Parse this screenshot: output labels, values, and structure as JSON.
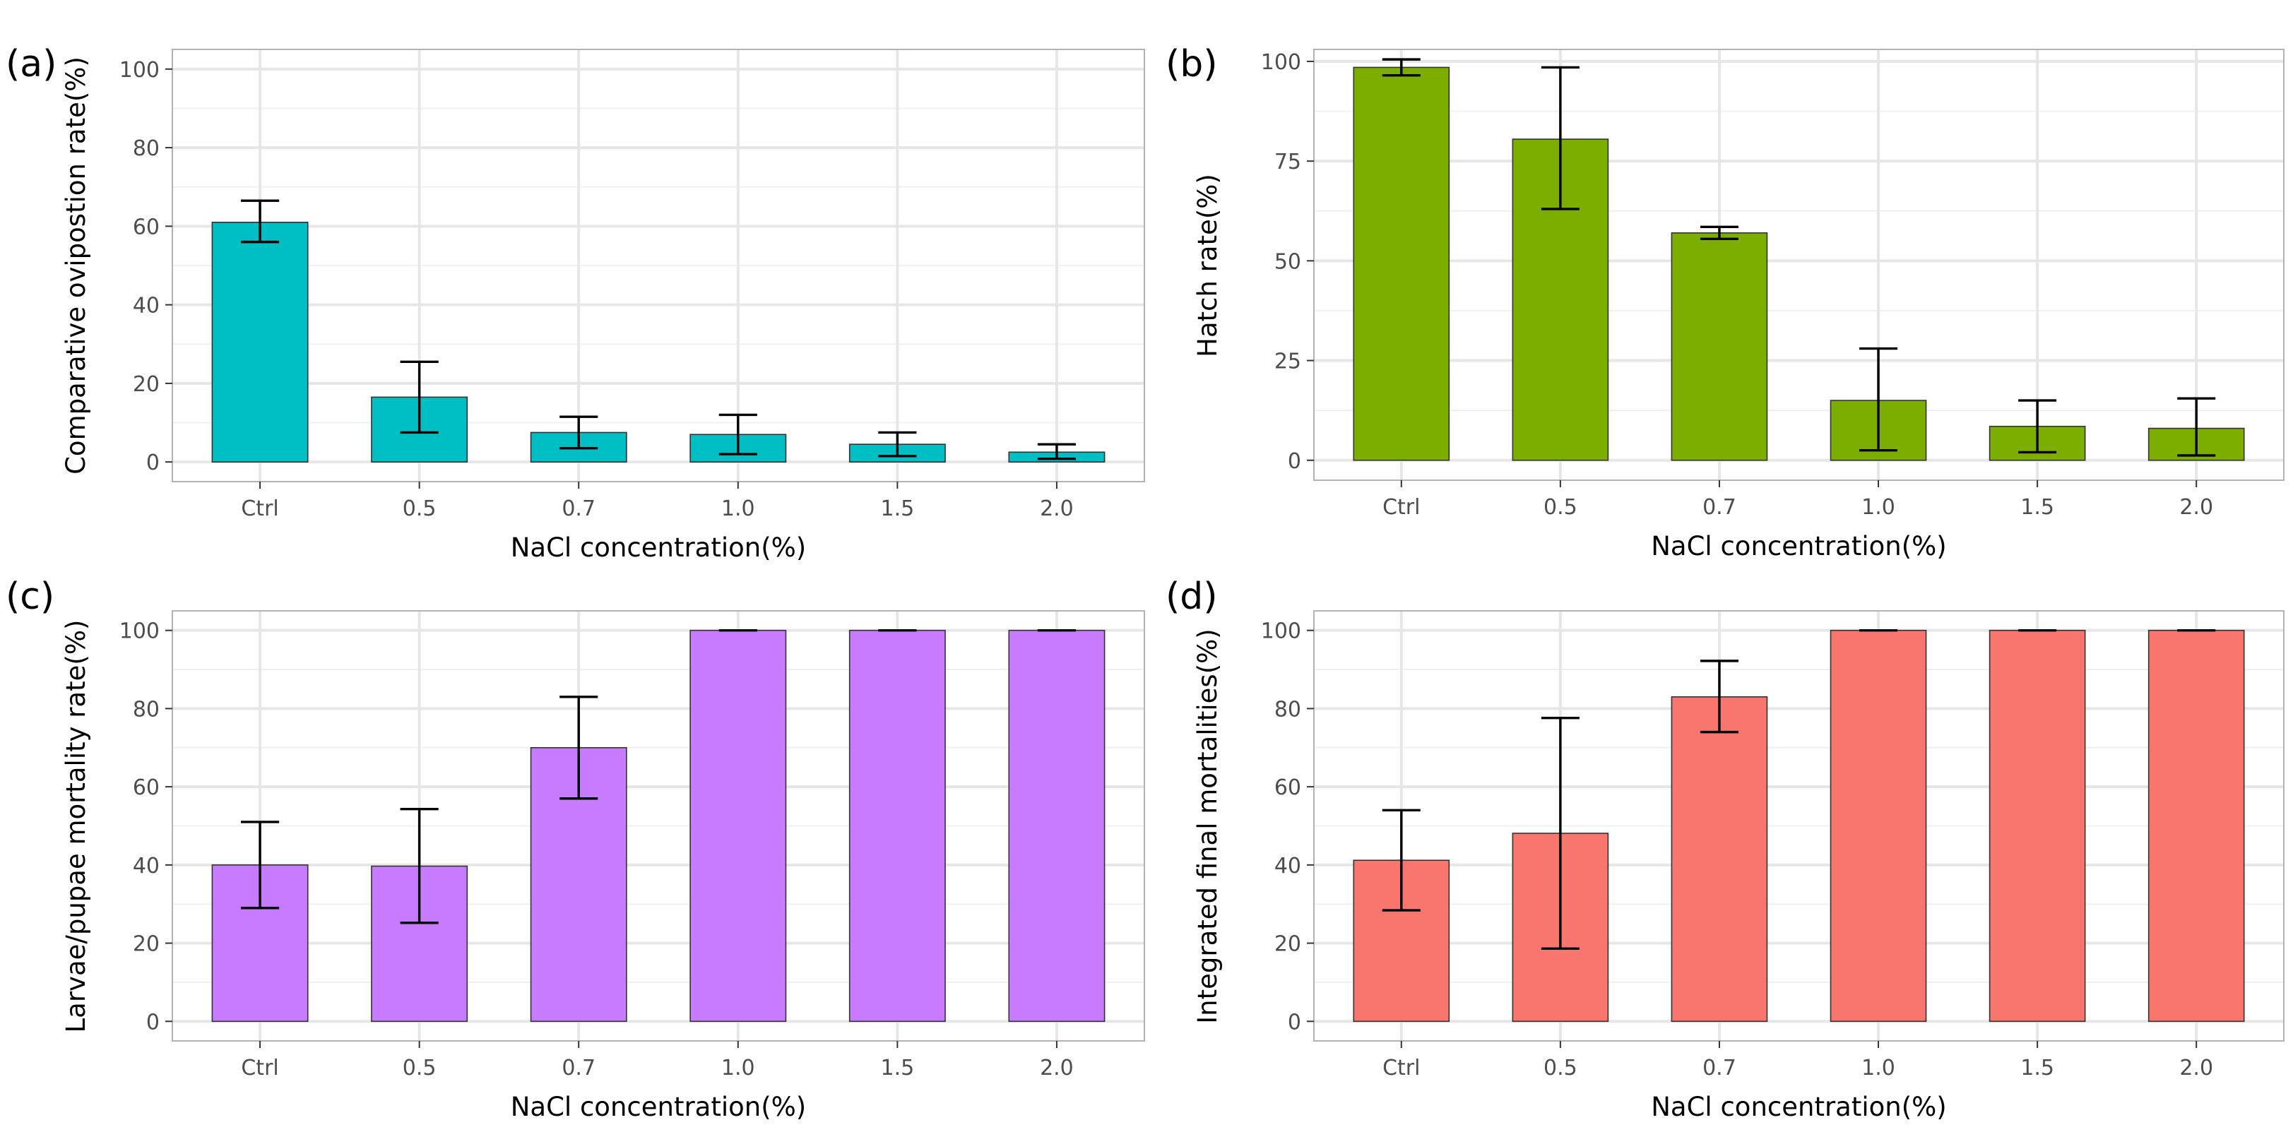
{
  "chart_data": [
    {
      "panel_label": "(a)",
      "type": "bar",
      "title": "",
      "xlabel": "NaCl concentration(%)",
      "ylabel": "Comparative ovipostion rate(%)",
      "categories": [
        "Ctrl",
        "0.5",
        "0.7",
        "1.0",
        "1.5",
        "2.0"
      ],
      "values": [
        61,
        16.5,
        7.5,
        7,
        4.5,
        2.5
      ],
      "error_low": [
        56,
        7.5,
        3.5,
        2,
        1.5,
        0.8
      ],
      "error_high": [
        66.5,
        25.5,
        11.5,
        12,
        7.5,
        4.5
      ],
      "yticks": [
        "0",
        "20",
        "40",
        "60",
        "80",
        "100"
      ],
      "ytick_values": [
        0,
        20,
        40,
        60,
        80,
        100
      ],
      "ylim": [
        -5,
        105
      ],
      "grid": true,
      "color": "#00BFC4"
    },
    {
      "panel_label": "(b)",
      "type": "bar",
      "title": "",
      "xlabel": "NaCl concentration(%)",
      "ylabel": "Hatch rate(%)",
      "categories": [
        "Ctrl",
        "0.5",
        "0.7",
        "1.0",
        "1.5",
        "2.0"
      ],
      "values": [
        98.5,
        80.5,
        57,
        15,
        8.5,
        8
      ],
      "error_low": [
        96.5,
        63,
        55.5,
        2.5,
        2,
        1.2
      ],
      "error_high": [
        100.5,
        98.5,
        58.5,
        28,
        15,
        15.5
      ],
      "yticks": [
        "0",
        "25",
        "50",
        "75",
        "100"
      ],
      "ytick_values": [
        0,
        25,
        50,
        75,
        100
      ],
      "ylim": [
        -5,
        103
      ],
      "grid": true,
      "color": "#7CAE00"
    },
    {
      "panel_label": "(c)",
      "type": "bar",
      "title": "",
      "xlabel": "NaCl concentration(%)",
      "ylabel": "Larvae/pupae mortality rate(%)",
      "categories": [
        "Ctrl",
        "0.5",
        "0.7",
        "1.0",
        "1.5",
        "2.0"
      ],
      "values": [
        40,
        39.7,
        70,
        100,
        100,
        100
      ],
      "error_low": [
        29,
        25.2,
        57,
        100,
        100,
        100
      ],
      "error_high": [
        51,
        54.3,
        83,
        100,
        100,
        100
      ],
      "yticks": [
        "0",
        "20",
        "40",
        "60",
        "80",
        "100"
      ],
      "ytick_values": [
        0,
        20,
        40,
        60,
        80,
        100
      ],
      "ylim": [
        -5,
        105
      ],
      "grid": true,
      "color": "#C77CFF"
    },
    {
      "panel_label": "(d)",
      "type": "bar",
      "title": "",
      "xlabel": "NaCl concentration(%)",
      "ylabel": "Integrated final mortalities(%)",
      "categories": [
        "Ctrl",
        "0.5",
        "0.7",
        "1.0",
        "1.5",
        "2.0"
      ],
      "values": [
        41.2,
        48.1,
        83,
        100,
        100,
        100
      ],
      "error_low": [
        28.4,
        18.6,
        74,
        100,
        100,
        100
      ],
      "error_high": [
        54,
        77.6,
        92.2,
        100,
        100,
        100
      ],
      "yticks": [
        "0",
        "20",
        "40",
        "60",
        "80",
        "100"
      ],
      "ytick_values": [
        0,
        20,
        40,
        60,
        80,
        100
      ],
      "ylim": [
        -5,
        105
      ],
      "grid": true,
      "color": "#F8766D"
    }
  ]
}
